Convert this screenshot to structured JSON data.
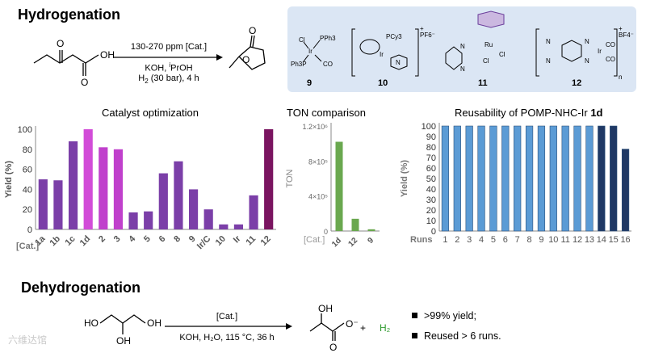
{
  "sections": {
    "hydrogenation": "Hydrogenation",
    "dehydrogenation": "Dehydrogenation"
  },
  "hydrogenation_conditions": {
    "above_arrow": "130-270 ppm [Cat.]",
    "line2": "KOH, ",
    "line2_sup": "i",
    "line2_rest": "PrOH",
    "line3": "H",
    "line3_sub": "2",
    "line3_rest": " (30 bar), 4 h"
  },
  "substrate": {
    "oh_label": "OH",
    "o_label": "O"
  },
  "product": {
    "o_label": "O"
  },
  "catalysts": [
    {
      "number": "9",
      "labels": [
        "Cl",
        "PPh3",
        "Ir",
        "Ph3P",
        "CO"
      ]
    },
    {
      "number": "10",
      "labels": [
        "PCy3",
        "Ir",
        "N",
        "PF6⁻",
        "+"
      ]
    },
    {
      "number": "11",
      "labels": [
        "N",
        "N",
        "Ru",
        "Cl",
        "Cl"
      ]
    },
    {
      "number": "12",
      "labels": [
        "N",
        "N",
        "N",
        "N",
        "Ir",
        "CO",
        "CO",
        "BF4⁻",
        "+",
        "n"
      ]
    }
  ],
  "dehydrogenation": {
    "above_arrow": "[Cat.]",
    "below_arrow": "KOH, H₂O, 115 °C, 36 h",
    "reactant_labels": [
      "HO",
      "OH",
      "OH"
    ],
    "product_labels": [
      "OH",
      "O",
      "O⁻"
    ],
    "plus": "+",
    "h2": "H₂",
    "bullets": [
      ">99% yield;",
      "Reused > 6 runs."
    ]
  },
  "watermark": "六维达馆",
  "chart_data": [
    {
      "type": "bar",
      "title": "Catalyst optimization",
      "ylabel": "Yield (%)",
      "xlabel": "[Cat.]",
      "ylim": [
        0,
        100
      ],
      "yticks": [
        0,
        20,
        40,
        60,
        80,
        100
      ],
      "categories": [
        "1a",
        "1b",
        "1c",
        "1d",
        "2",
        "3",
        "4",
        "5",
        "6",
        "8",
        "9",
        "Ir/C",
        "10",
        "Ir",
        "11",
        "12"
      ],
      "values": [
        50,
        49,
        88,
        100,
        82,
        80,
        17,
        18,
        56,
        68,
        40,
        20,
        5,
        5,
        34,
        100
      ],
      "colors": [
        "#7b3fa8",
        "#7b3fa8",
        "#7b3fa8",
        "#d24cd8",
        "#c040cc",
        "#c040cc",
        "#7b3fa8",
        "#7b3fa8",
        "#7b3fa8",
        "#7b3fa8",
        "#7b3fa8",
        "#7b3fa8",
        "#7b3fa8",
        "#7b3fa8",
        "#7b3fa8",
        "#7a1460"
      ],
      "grid": false
    },
    {
      "type": "bar",
      "title": "TON comparison",
      "ylabel": "TON",
      "xlabel": "[Cat.]",
      "ylim": [
        0,
        1200000
      ],
      "yticks": [
        "0",
        "4×10⁵",
        "8×10⁵",
        "1.2×10⁶"
      ],
      "categories": [
        "1d",
        "12",
        "9"
      ],
      "values": [
        1020000,
        140000,
        20000
      ],
      "colors": [
        "#6aa84f",
        "#6aa84f",
        "#6aa84f"
      ],
      "grid": false
    },
    {
      "type": "bar",
      "title": "Reusability of POMP-NHC-Ir ",
      "title_bold": "1d",
      "ylabel": "Yield (%)",
      "xlabel": "Runs",
      "ylim": [
        0,
        100
      ],
      "yticks": [
        0,
        10,
        20,
        30,
        40,
        50,
        60,
        70,
        80,
        90,
        100
      ],
      "categories": [
        "1",
        "2",
        "3",
        "4",
        "5",
        "6",
        "7",
        "8",
        "9",
        "10",
        "11",
        "12",
        "13",
        "14",
        "15",
        "16"
      ],
      "values": [
        100,
        100,
        100,
        100,
        100,
        100,
        100,
        100,
        100,
        100,
        100,
        100,
        100,
        100,
        100,
        78
      ],
      "colors": [
        "#5b9bd5",
        "#5b9bd5",
        "#5b9bd5",
        "#5b9bd5",
        "#5b9bd5",
        "#5b9bd5",
        "#5b9bd5",
        "#5b9bd5",
        "#5b9bd5",
        "#5b9bd5",
        "#5b9bd5",
        "#5b9bd5",
        "#5b9bd5",
        "#1f3864",
        "#1f3864",
        "#1f3864"
      ],
      "grid": false
    }
  ]
}
